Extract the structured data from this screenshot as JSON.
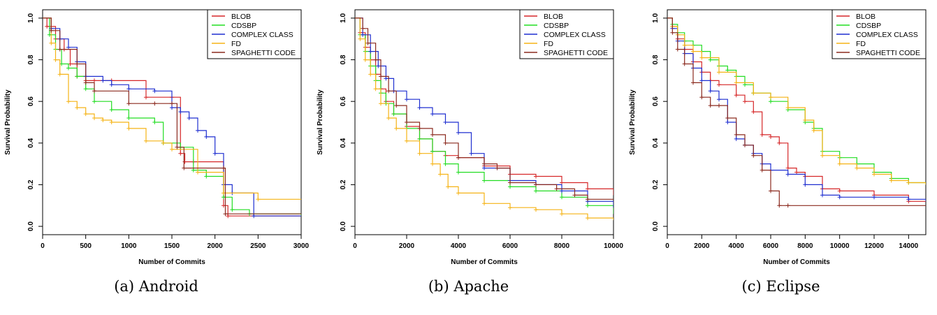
{
  "figure": {
    "captions": [
      "(a) Android",
      "(b) Apache",
      "(c) Eclipse"
    ]
  },
  "legend": {
    "entries": [
      {
        "name": "BLOB",
        "color": "#d62728"
      },
      {
        "name": "CDSBP",
        "color": "#22dd22"
      },
      {
        "name": "COMPLEX CLASS",
        "color": "#1f2fd0"
      },
      {
        "name": "FD",
        "color": "#f5b316"
      },
      {
        "name": "SPAGHETTI CODE",
        "color": "#8b2a1f"
      }
    ]
  },
  "chart_data": [
    {
      "type": "line",
      "caption": "(a) Android",
      "xlabel": "Number of Commits",
      "ylabel": "Survival Probability",
      "xlim": [
        0,
        3000
      ],
      "ylim": [
        0,
        1
      ],
      "xticks": [
        0,
        500,
        1000,
        1500,
        2000,
        2500,
        3000
      ],
      "yticks": [
        0.0,
        0.2,
        0.4,
        0.6,
        0.8,
        1.0
      ],
      "ytick_labels": [
        "0.0",
        "0.2",
        "0.4",
        "0.6",
        "0.8",
        "1.0"
      ],
      "step": true,
      "legend_position": "top-right",
      "grid": false,
      "series": [
        {
          "name": "BLOB",
          "x": [
            0,
            50,
            150,
            250,
            320,
            400,
            500,
            600,
            800,
            1200,
            1500,
            1600,
            1650,
            1750,
            2100,
            2150,
            3000
          ],
          "y": [
            1.0,
            0.96,
            0.9,
            0.85,
            0.78,
            0.72,
            0.7,
            0.7,
            0.7,
            0.62,
            0.62,
            0.35,
            0.31,
            0.31,
            0.1,
            0.05,
            0.05
          ]
        },
        {
          "name": "CDSBP",
          "x": [
            0,
            80,
            150,
            220,
            300,
            400,
            500,
            600,
            800,
            1000,
            1300,
            1400,
            1600,
            1750,
            1900,
            2100,
            2200,
            2400,
            3000
          ],
          "y": [
            1.0,
            0.92,
            0.85,
            0.78,
            0.76,
            0.72,
            0.66,
            0.6,
            0.56,
            0.52,
            0.5,
            0.4,
            0.38,
            0.27,
            0.24,
            0.14,
            0.08,
            0.06,
            0.05
          ]
        },
        {
          "name": "COMPLEX CLASS",
          "x": [
            0,
            100,
            200,
            300,
            400,
            500,
            700,
            800,
            1000,
            1300,
            1500,
            1600,
            1700,
            1800,
            1900,
            2000,
            2100,
            2200,
            2450,
            3000
          ],
          "y": [
            1.0,
            0.95,
            0.9,
            0.86,
            0.79,
            0.72,
            0.7,
            0.68,
            0.66,
            0.65,
            0.57,
            0.55,
            0.52,
            0.46,
            0.43,
            0.35,
            0.2,
            0.16,
            0.05,
            0.05
          ]
        },
        {
          "name": "FD",
          "x": [
            0,
            100,
            150,
            200,
            300,
            400,
            500,
            600,
            700,
            800,
            1000,
            1200,
            1400,
            1500,
            1800,
            2100,
            2500,
            3000
          ],
          "y": [
            1.0,
            0.88,
            0.8,
            0.73,
            0.6,
            0.57,
            0.54,
            0.52,
            0.51,
            0.5,
            0.47,
            0.41,
            0.4,
            0.37,
            0.26,
            0.16,
            0.13,
            0.13
          ]
        },
        {
          "name": "SPAGHETTI CODE",
          "x": [
            0,
            100,
            200,
            400,
            500,
            600,
            1000,
            1300,
            1500,
            1560,
            1640,
            2100,
            2120,
            3000
          ],
          "y": [
            1.0,
            0.94,
            0.85,
            0.78,
            0.69,
            0.65,
            0.59,
            0.59,
            0.59,
            0.38,
            0.28,
            0.28,
            0.06,
            0.06
          ]
        }
      ]
    },
    {
      "type": "line",
      "caption": "(b) Apache",
      "xlabel": "Number of Commits",
      "ylabel": "Survival Probability",
      "xlim": [
        0,
        10000
      ],
      "ylim": [
        0,
        1
      ],
      "xticks": [
        0,
        2000,
        4000,
        6000,
        8000,
        10000
      ],
      "yticks": [
        0.0,
        0.2,
        0.4,
        0.6,
        0.8,
        1.0
      ],
      "ytick_labels": [
        "0.0",
        "0.2",
        "0.4",
        "0.6",
        "0.8",
        "1.0"
      ],
      "step": true,
      "legend_position": "top-right",
      "grid": false,
      "series": [
        {
          "name": "BLOB",
          "x": [
            0,
            200,
            400,
            600,
            800,
            1000,
            1200,
            1500,
            2000,
            2500,
            3000,
            3500,
            4000,
            5000,
            6000,
            7000,
            8000,
            9000,
            10000
          ],
          "y": [
            1.0,
            0.93,
            0.86,
            0.8,
            0.73,
            0.66,
            0.6,
            0.54,
            0.48,
            0.42,
            0.36,
            0.34,
            0.33,
            0.29,
            0.25,
            0.24,
            0.21,
            0.18,
            0.15
          ]
        },
        {
          "name": "CDSBP",
          "x": [
            0,
            200,
            400,
            600,
            800,
            1000,
            1200,
            1500,
            2000,
            2500,
            3000,
            3500,
            4000,
            5000,
            6000,
            7000,
            8000,
            9000,
            10000
          ],
          "y": [
            1.0,
            0.92,
            0.84,
            0.77,
            0.7,
            0.64,
            0.59,
            0.54,
            0.47,
            0.42,
            0.36,
            0.3,
            0.26,
            0.22,
            0.19,
            0.17,
            0.14,
            0.1,
            0.06
          ]
        },
        {
          "name": "COMPLEX CLASS",
          "x": [
            0,
            300,
            600,
            900,
            1200,
            1500,
            2000,
            2500,
            3000,
            3500,
            4000,
            4500,
            5000,
            5500,
            6000,
            7000,
            8000,
            9000,
            10000
          ],
          "y": [
            1.0,
            0.92,
            0.84,
            0.77,
            0.71,
            0.65,
            0.61,
            0.57,
            0.54,
            0.5,
            0.45,
            0.35,
            0.28,
            0.28,
            0.22,
            0.2,
            0.17,
            0.12,
            0.09
          ]
        },
        {
          "name": "FD",
          "x": [
            0,
            200,
            400,
            600,
            800,
            1000,
            1300,
            1600,
            2000,
            2500,
            3000,
            3300,
            3600,
            4000,
            5000,
            6000,
            7000,
            8000,
            9000,
            10000
          ],
          "y": [
            1.0,
            0.9,
            0.8,
            0.73,
            0.66,
            0.59,
            0.52,
            0.47,
            0.41,
            0.35,
            0.3,
            0.25,
            0.19,
            0.16,
            0.11,
            0.09,
            0.08,
            0.06,
            0.04,
            0.03
          ]
        },
        {
          "name": "SPAGHETTI CODE",
          "x": [
            0,
            300,
            500,
            800,
            1000,
            1300,
            1600,
            2000,
            2500,
            3000,
            3500,
            4000,
            5000,
            5500,
            6000,
            7000,
            7800,
            8500,
            9000,
            10000
          ],
          "y": [
            1.0,
            0.95,
            0.88,
            0.8,
            0.72,
            0.65,
            0.58,
            0.5,
            0.47,
            0.44,
            0.4,
            0.33,
            0.3,
            0.28,
            0.21,
            0.2,
            0.18,
            0.15,
            0.13,
            0.13
          ]
        }
      ]
    },
    {
      "type": "line",
      "caption": "(c) Eclipse",
      "xlabel": "Number of Commits",
      "ylabel": "Survival Probability",
      "xlim": [
        0,
        15000
      ],
      "ylim": [
        0,
        1
      ],
      "xticks": [
        0,
        2000,
        4000,
        6000,
        8000,
        10000,
        12000,
        14000
      ],
      "yticks": [
        0.0,
        0.2,
        0.4,
        0.6,
        0.8,
        1.0
      ],
      "ytick_labels": [
        "0.0",
        "0.2",
        "0.4",
        "0.6",
        "0.8",
        "1.0"
      ],
      "step": true,
      "legend_position": "top-right",
      "grid": false,
      "series": [
        {
          "name": "BLOB",
          "x": [
            0,
            300,
            600,
            1000,
            1500,
            2000,
            2500,
            3000,
            4000,
            4500,
            5000,
            5500,
            6000,
            6500,
            7000,
            7500,
            8000,
            9000,
            10000,
            12000,
            14000,
            15000
          ],
          "y": [
            1.0,
            0.96,
            0.9,
            0.85,
            0.79,
            0.74,
            0.7,
            0.68,
            0.63,
            0.6,
            0.55,
            0.44,
            0.43,
            0.4,
            0.28,
            0.26,
            0.24,
            0.18,
            0.17,
            0.15,
            0.12,
            0.12
          ]
        },
        {
          "name": "CDSBP",
          "x": [
            0,
            300,
            600,
            1000,
            1500,
            2000,
            2500,
            3000,
            3500,
            4000,
            4500,
            5000,
            6000,
            7000,
            8000,
            8500,
            9000,
            10000,
            11000,
            12000,
            13000,
            14000,
            15000
          ],
          "y": [
            1.0,
            0.97,
            0.93,
            0.89,
            0.87,
            0.84,
            0.8,
            0.77,
            0.75,
            0.72,
            0.68,
            0.64,
            0.6,
            0.56,
            0.5,
            0.47,
            0.36,
            0.33,
            0.3,
            0.26,
            0.23,
            0.21,
            0.2
          ]
        },
        {
          "name": "COMPLEX CLASS",
          "x": [
            0,
            300,
            600,
            1000,
            1500,
            2000,
            2500,
            3000,
            3500,
            4000,
            4500,
            5000,
            5500,
            6000,
            7000,
            8000,
            9000,
            10000,
            12000,
            14000,
            15000
          ],
          "y": [
            1.0,
            0.95,
            0.89,
            0.83,
            0.76,
            0.7,
            0.65,
            0.61,
            0.5,
            0.42,
            0.39,
            0.35,
            0.3,
            0.27,
            0.25,
            0.2,
            0.15,
            0.14,
            0.14,
            0.13,
            0.12
          ]
        },
        {
          "name": "FD",
          "x": [
            0,
            300,
            600,
            1000,
            1500,
            2000,
            3000,
            4000,
            5000,
            6000,
            7000,
            8000,
            8500,
            9000,
            10000,
            11000,
            12000,
            13000,
            14000,
            15000
          ],
          "y": [
            1.0,
            0.96,
            0.92,
            0.87,
            0.84,
            0.81,
            0.74,
            0.69,
            0.64,
            0.62,
            0.57,
            0.51,
            0.46,
            0.34,
            0.3,
            0.28,
            0.25,
            0.22,
            0.21,
            0.2
          ]
        },
        {
          "name": "SPAGHETTI CODE",
          "x": [
            0,
            300,
            600,
            1000,
            1500,
            2000,
            2500,
            3000,
            3500,
            4000,
            4500,
            5000,
            5500,
            6000,
            6500,
            7000,
            15000
          ],
          "y": [
            1.0,
            0.93,
            0.85,
            0.78,
            0.69,
            0.62,
            0.58,
            0.58,
            0.52,
            0.44,
            0.39,
            0.34,
            0.27,
            0.17,
            0.1,
            0.1,
            0.1
          ]
        }
      ]
    }
  ]
}
